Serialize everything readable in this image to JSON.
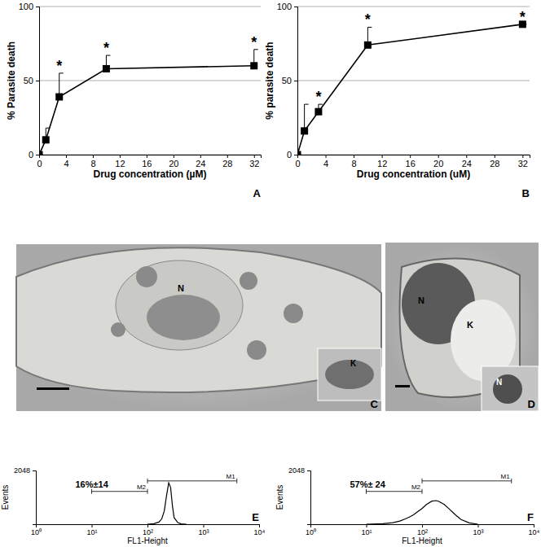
{
  "chart_data": [
    {
      "type": "line",
      "panel": "A",
      "x_label": "Drug concentration (µM)",
      "y_label": "% Parasite death",
      "x": [
        0,
        1,
        3,
        10,
        32
      ],
      "values": [
        0,
        10,
        39,
        58,
        60
      ],
      "errors": [
        0,
        8,
        16,
        9,
        11
      ],
      "significant": [
        false,
        false,
        true,
        true,
        true
      ],
      "annotation": "*",
      "xlim": [
        0,
        33
      ],
      "xticks": [
        0,
        4,
        8,
        12,
        16,
        20,
        24,
        28,
        32
      ],
      "ylim": [
        0,
        100
      ],
      "yticks": [
        0,
        50,
        100
      ],
      "grid": true,
      "color": "#000000",
      "marker": "square"
    },
    {
      "type": "line",
      "panel": "B",
      "x_label": "Drug concentration (uM)",
      "y_label": "% parasite death",
      "x": [
        0,
        1,
        3,
        10,
        32
      ],
      "values": [
        0,
        16,
        29,
        74,
        88
      ],
      "errors": [
        0,
        18,
        5,
        12,
        0
      ],
      "significant": [
        false,
        false,
        true,
        true,
        true
      ],
      "annotation": "*",
      "xlim": [
        0,
        33
      ],
      "xticks": [
        0,
        4,
        8,
        12,
        16,
        20,
        24,
        28,
        32
      ],
      "ylim": [
        0,
        100
      ],
      "yticks": [
        0,
        50,
        100
      ],
      "grid": true,
      "color": "#000000",
      "marker": "square"
    },
    {
      "type": "line",
      "panel": "E",
      "x_label": "FL1-Height",
      "y_label": "Events",
      "log": "x",
      "x": [
        100,
        130,
        160,
        180,
        200,
        220,
        240,
        260,
        280,
        300,
        350,
        400,
        500
      ],
      "values": [
        0,
        20,
        80,
        200,
        500,
        1100,
        1580,
        1400,
        700,
        250,
        60,
        10,
        0
      ],
      "xlim": [
        1,
        10000
      ],
      "xticks": [
        {
          "value": 1,
          "label": "10⁰"
        },
        {
          "value": 10,
          "label": "10¹"
        },
        {
          "value": 100,
          "label": "10²"
        },
        {
          "value": 1000,
          "label": "10³"
        },
        {
          "value": 10000,
          "label": "10⁴"
        }
      ],
      "ylim": [
        0,
        2048
      ],
      "yticks": [
        2048
      ],
      "grid": false,
      "color": "#000000",
      "marker": "none",
      "gates": [
        {
          "name": "M1",
          "x": [
            100,
            4000
          ],
          "y": 1650
        },
        {
          "name": "M2",
          "x": [
            10,
            100
          ],
          "y": 1250
        }
      ],
      "annotation": "16%±14"
    },
    {
      "type": "line",
      "panel": "F",
      "x_label": "FL1-Height",
      "y_label": "Events",
      "log": "x",
      "x": [
        10,
        20,
        30,
        40,
        50,
        60,
        70,
        80,
        100,
        120,
        150,
        180,
        200,
        250,
        300,
        400,
        500,
        700,
        1000
      ],
      "values": [
        0,
        20,
        60,
        120,
        200,
        280,
        360,
        450,
        600,
        750,
        880,
        900,
        870,
        750,
        600,
        350,
        180,
        50,
        0
      ],
      "xlim": [
        1,
        10000
      ],
      "xticks": [
        {
          "value": 1,
          "label": "10⁰"
        },
        {
          "value": 10,
          "label": "10¹"
        },
        {
          "value": 100,
          "label": "10²"
        },
        {
          "value": 1000,
          "label": "10³"
        },
        {
          "value": 10000,
          "label": "10⁴"
        }
      ],
      "ylim": [
        0,
        2048
      ],
      "yticks": [
        2048
      ],
      "grid": false,
      "color": "#000000",
      "marker": "none",
      "gates": [
        {
          "name": "M1",
          "x": [
            100,
            4000
          ],
          "y": 1650
        },
        {
          "name": "M2",
          "x": [
            10,
            100
          ],
          "y": 1250
        }
      ],
      "annotation": "57%± 24"
    }
  ],
  "micrographs": [
    {
      "panel": "C",
      "labels": [
        "N"
      ],
      "inset_labels": [
        "K"
      ]
    },
    {
      "panel": "D",
      "labels": [
        "N",
        "K"
      ],
      "inset_labels": [
        "N"
      ]
    }
  ]
}
